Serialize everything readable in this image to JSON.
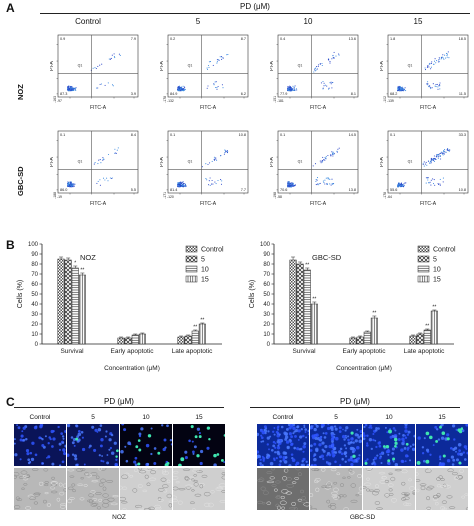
{
  "figure": {
    "panels": {
      "a": "A",
      "b": "B",
      "c": "C"
    },
    "treatment_label": "PD (μM)",
    "conditions": [
      "Control",
      "5",
      "10",
      "15"
    ],
    "cell_lines": [
      "NOZ",
      "GBC-SD"
    ],
    "flow": {
      "x_axis_label": "FITC-A",
      "y_axis_label": "PI-A",
      "gate_label": "Q1",
      "quadrants": [
        [
          {
            "ul": "0.9",
            "ur": "7.9",
            "ll": "87.3",
            "lr": "3.9",
            "ymin": "-163",
            "xmin": "-97"
          },
          {
            "ul": "0.2",
            "ur": "8.7",
            "ll": "84.9",
            "lr": "6.2",
            "ymin": "-178",
            "xmin": "-132"
          },
          {
            "ul": "0.4",
            "ur": "13.6",
            "ll": "77.9",
            "lr": "8.1",
            "ymin": "-151",
            "xmin": "-181"
          },
          {
            "ul": "1.8",
            "ur": "18.5",
            "ll": "68.2",
            "lr": "11.5",
            "ymin": "-102",
            "xmin": "-139"
          }
        ],
        [
          {
            "ul": "0.1",
            "ur": "8.4",
            "ll": "86.0",
            "lr": "5.5",
            "ymin": "-188",
            "xmin": "-19"
          },
          {
            "ul": "0.1",
            "ur": "10.8",
            "ll": "81.4",
            "lr": "7.7",
            "ymin": "-171",
            "xmin": "-120"
          },
          {
            "ul": "0.1",
            "ur": "14.5",
            "ll": "70.6",
            "lr": "13.8",
            "ymin": "-198",
            "xmin": "-58"
          },
          {
            "ul": "0.1",
            "ur": "33.3",
            "ll": "55.6",
            "lr": "10.8",
            "ymin": "-178",
            "xmin": "-64"
          }
        ]
      ]
    },
    "microscopy": {
      "cell_lines": [
        "NOZ",
        "GBC-SD"
      ]
    }
  },
  "chart_data": [
    {
      "type": "bar",
      "title": "NOZ",
      "ylabel": "Cells (%)",
      "xlabel": "Concentration (μM)",
      "categories": [
        "Survival",
        "Early apoptotic",
        "Late apoptotic"
      ],
      "ylim": [
        0,
        100
      ],
      "yticks": [
        "0",
        "10",
        "20",
        "30",
        "40",
        "50",
        "60",
        "70",
        "80",
        "90",
        "100"
      ],
      "legend_position": "top-right",
      "series": [
        {
          "name": "Control",
          "values": [
            85,
            6,
            7
          ],
          "errors": [
            2,
            1,
            1
          ],
          "sig": [
            "",
            "",
            ""
          ]
        },
        {
          "name": "5",
          "values": [
            84,
            6,
            8
          ],
          "errors": [
            2,
            1,
            1
          ],
          "sig": [
            "",
            "",
            ""
          ]
        },
        {
          "name": "10",
          "values": [
            76,
            9,
            13
          ],
          "errors": [
            2,
            1,
            1
          ],
          "sig": [
            "*",
            "",
            "**"
          ]
        },
        {
          "name": "15",
          "values": [
            69,
            10,
            20
          ],
          "errors": [
            2,
            1,
            1
          ],
          "sig": [
            "**",
            "",
            "**"
          ]
        }
      ]
    },
    {
      "type": "bar",
      "title": "GBC-SD",
      "ylabel": "Cells (%)",
      "xlabel": "Concentration (μM)",
      "categories": [
        "Survival",
        "Early apoptotic",
        "Late apoptotic"
      ],
      "ylim": [
        0,
        100
      ],
      "yticks": [
        "0",
        "10",
        "20",
        "30",
        "40",
        "50",
        "60",
        "70",
        "80",
        "90",
        "100"
      ],
      "legend_position": "top-right",
      "series": [
        {
          "name": "Control",
          "values": [
            84,
            6,
            8
          ],
          "errors": [
            3,
            1,
            1
          ],
          "sig": [
            "",
            "",
            ""
          ]
        },
        {
          "name": "5",
          "values": [
            80,
            7,
            10
          ],
          "errors": [
            2,
            1,
            1
          ],
          "sig": [
            "",
            "",
            ""
          ]
        },
        {
          "name": "10",
          "values": [
            74,
            12,
            14
          ],
          "errors": [
            2,
            1,
            1
          ],
          "sig": [
            "**",
            "",
            "**"
          ]
        },
        {
          "name": "15",
          "values": [
            40,
            26,
            33
          ],
          "errors": [
            2,
            2,
            1
          ],
          "sig": [
            "**",
            "**",
            "**"
          ]
        }
      ]
    }
  ]
}
